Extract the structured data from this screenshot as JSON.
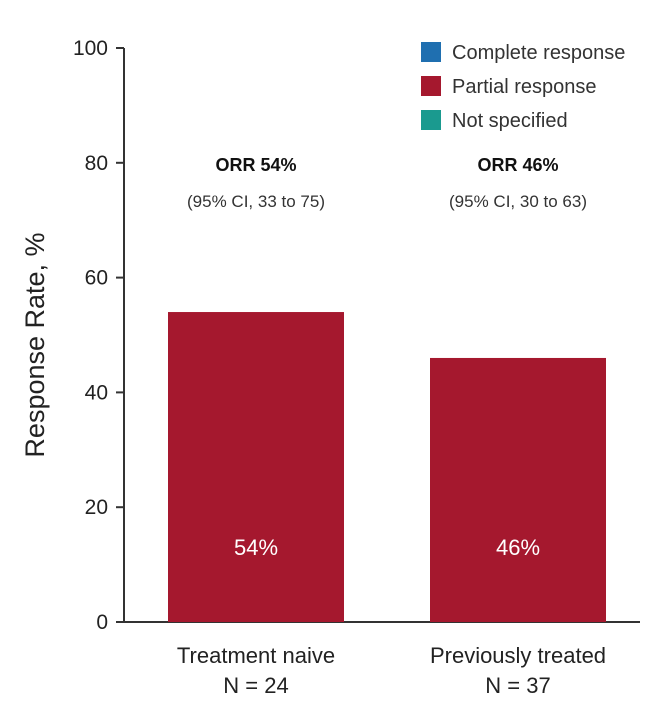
{
  "chart_data": {
    "type": "bar",
    "ylabel": "Response Rate, %",
    "ylim": [
      0,
      100
    ],
    "yticks": [
      0,
      20,
      40,
      60,
      80,
      100
    ],
    "grid": false,
    "legend_position": "top-right",
    "categories": [
      {
        "name": "Treatment naive",
        "n": "N = 24"
      },
      {
        "name": "Previously treated",
        "n": "N = 37"
      }
    ],
    "series": [
      {
        "name": "Complete response",
        "color": "#1f6fb0",
        "values": [
          0,
          0
        ]
      },
      {
        "name": "Partial response",
        "color": "#a5182e",
        "values": [
          54,
          46
        ]
      },
      {
        "name": "Not specified",
        "color": "#1a9a8f",
        "values": [
          0,
          0
        ]
      }
    ],
    "bar_labels": [
      "54%",
      "46%"
    ],
    "annotations": [
      {
        "title": "ORR 54%",
        "ci": "(95% CI, 33 to 75)"
      },
      {
        "title": "ORR 46%",
        "ci": "(95% CI, 30 to 63)"
      }
    ]
  }
}
